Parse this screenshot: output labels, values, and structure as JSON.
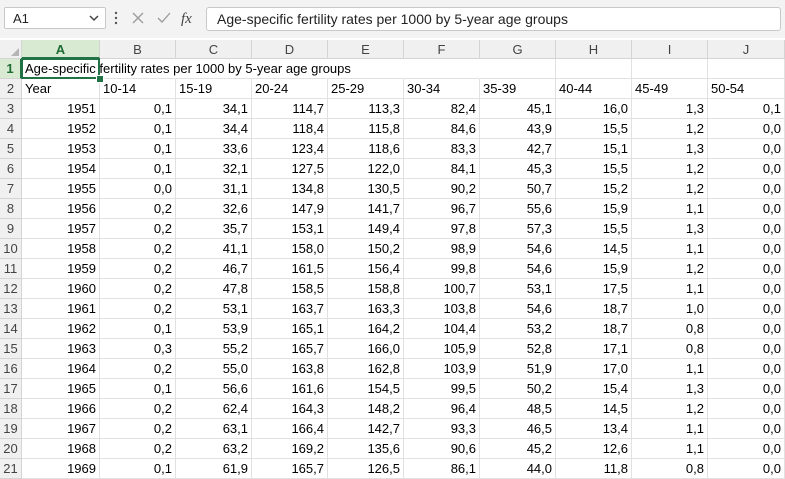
{
  "formula_bar": {
    "name_box": "A1",
    "name_box_dropdown_icon": "chevron-down-icon",
    "cancel_icon": "close-icon",
    "enter_icon": "check-icon",
    "function_icon": "fx-icon",
    "formula_text": "Age-specific fertility rates per 1000 by 5-year age groups"
  },
  "grid": {
    "selected_cell": "A1",
    "columns": [
      "A",
      "B",
      "C",
      "D",
      "E",
      "F",
      "G",
      "H",
      "I",
      "J"
    ],
    "row_numbers": [
      "1",
      "2",
      "3",
      "4",
      "5",
      "6",
      "7",
      "8",
      "9",
      "10",
      "11",
      "12",
      "13",
      "14",
      "15",
      "16",
      "17",
      "18",
      "19",
      "20",
      "21"
    ],
    "title": "Age-specific fertility rates per 1000 by 5-year age groups",
    "headers": [
      "Year",
      "10-14",
      "15-19",
      "20-24",
      "25-29",
      "30-34",
      "35-39",
      "40-44",
      "45-49",
      "50-54"
    ],
    "rows": [
      [
        "1951",
        "0,1",
        "34,1",
        "114,7",
        "113,3",
        "82,4",
        "45,1",
        "16,0",
        "1,3",
        "0,1"
      ],
      [
        "1952",
        "0,1",
        "34,4",
        "118,4",
        "115,8",
        "84,6",
        "43,9",
        "15,5",
        "1,2",
        "0,0"
      ],
      [
        "1953",
        "0,1",
        "33,6",
        "123,4",
        "118,6",
        "83,3",
        "42,7",
        "15,1",
        "1,3",
        "0,0"
      ],
      [
        "1954",
        "0,1",
        "32,1",
        "127,5",
        "122,0",
        "84,1",
        "45,3",
        "15,5",
        "1,2",
        "0,0"
      ],
      [
        "1955",
        "0,0",
        "31,1",
        "134,8",
        "130,5",
        "90,2",
        "50,7",
        "15,2",
        "1,2",
        "0,0"
      ],
      [
        "1956",
        "0,2",
        "32,6",
        "147,9",
        "141,7",
        "96,7",
        "55,6",
        "15,9",
        "1,1",
        "0,0"
      ],
      [
        "1957",
        "0,2",
        "35,7",
        "153,1",
        "149,4",
        "97,8",
        "57,3",
        "15,5",
        "1,3",
        "0,0"
      ],
      [
        "1958",
        "0,2",
        "41,1",
        "158,0",
        "150,2",
        "98,9",
        "54,6",
        "14,5",
        "1,1",
        "0,0"
      ],
      [
        "1959",
        "0,2",
        "46,7",
        "161,5",
        "156,4",
        "99,8",
        "54,6",
        "15,9",
        "1,2",
        "0,0"
      ],
      [
        "1960",
        "0,2",
        "47,8",
        "158,5",
        "158,8",
        "100,7",
        "53,1",
        "17,5",
        "1,1",
        "0,0"
      ],
      [
        "1961",
        "0,2",
        "53,1",
        "163,7",
        "163,3",
        "103,8",
        "54,6",
        "18,7",
        "1,0",
        "0,0"
      ],
      [
        "1962",
        "0,1",
        "53,9",
        "165,1",
        "164,2",
        "104,4",
        "53,2",
        "18,7",
        "0,8",
        "0,0"
      ],
      [
        "1963",
        "0,3",
        "55,2",
        "165,7",
        "166,0",
        "105,9",
        "52,8",
        "17,1",
        "0,8",
        "0,0"
      ],
      [
        "1964",
        "0,2",
        "55,0",
        "163,8",
        "162,8",
        "103,9",
        "51,9",
        "17,0",
        "1,1",
        "0,0"
      ],
      [
        "1965",
        "0,1",
        "56,6",
        "161,6",
        "154,5",
        "99,5",
        "50,2",
        "15,4",
        "1,3",
        "0,0"
      ],
      [
        "1966",
        "0,2",
        "62,4",
        "164,3",
        "148,2",
        "96,4",
        "48,5",
        "14,5",
        "1,2",
        "0,0"
      ],
      [
        "1967",
        "0,2",
        "63,1",
        "166,4",
        "142,7",
        "93,3",
        "46,5",
        "13,4",
        "1,1",
        "0,0"
      ],
      [
        "1968",
        "0,2",
        "63,2",
        "169,2",
        "135,6",
        "90,6",
        "45,2",
        "12,6",
        "1,1",
        "0,0"
      ],
      [
        "1969",
        "0,1",
        "61,9",
        "165,7",
        "126,5",
        "86,1",
        "44,0",
        "11,8",
        "0,8",
        "0,0"
      ]
    ]
  }
}
